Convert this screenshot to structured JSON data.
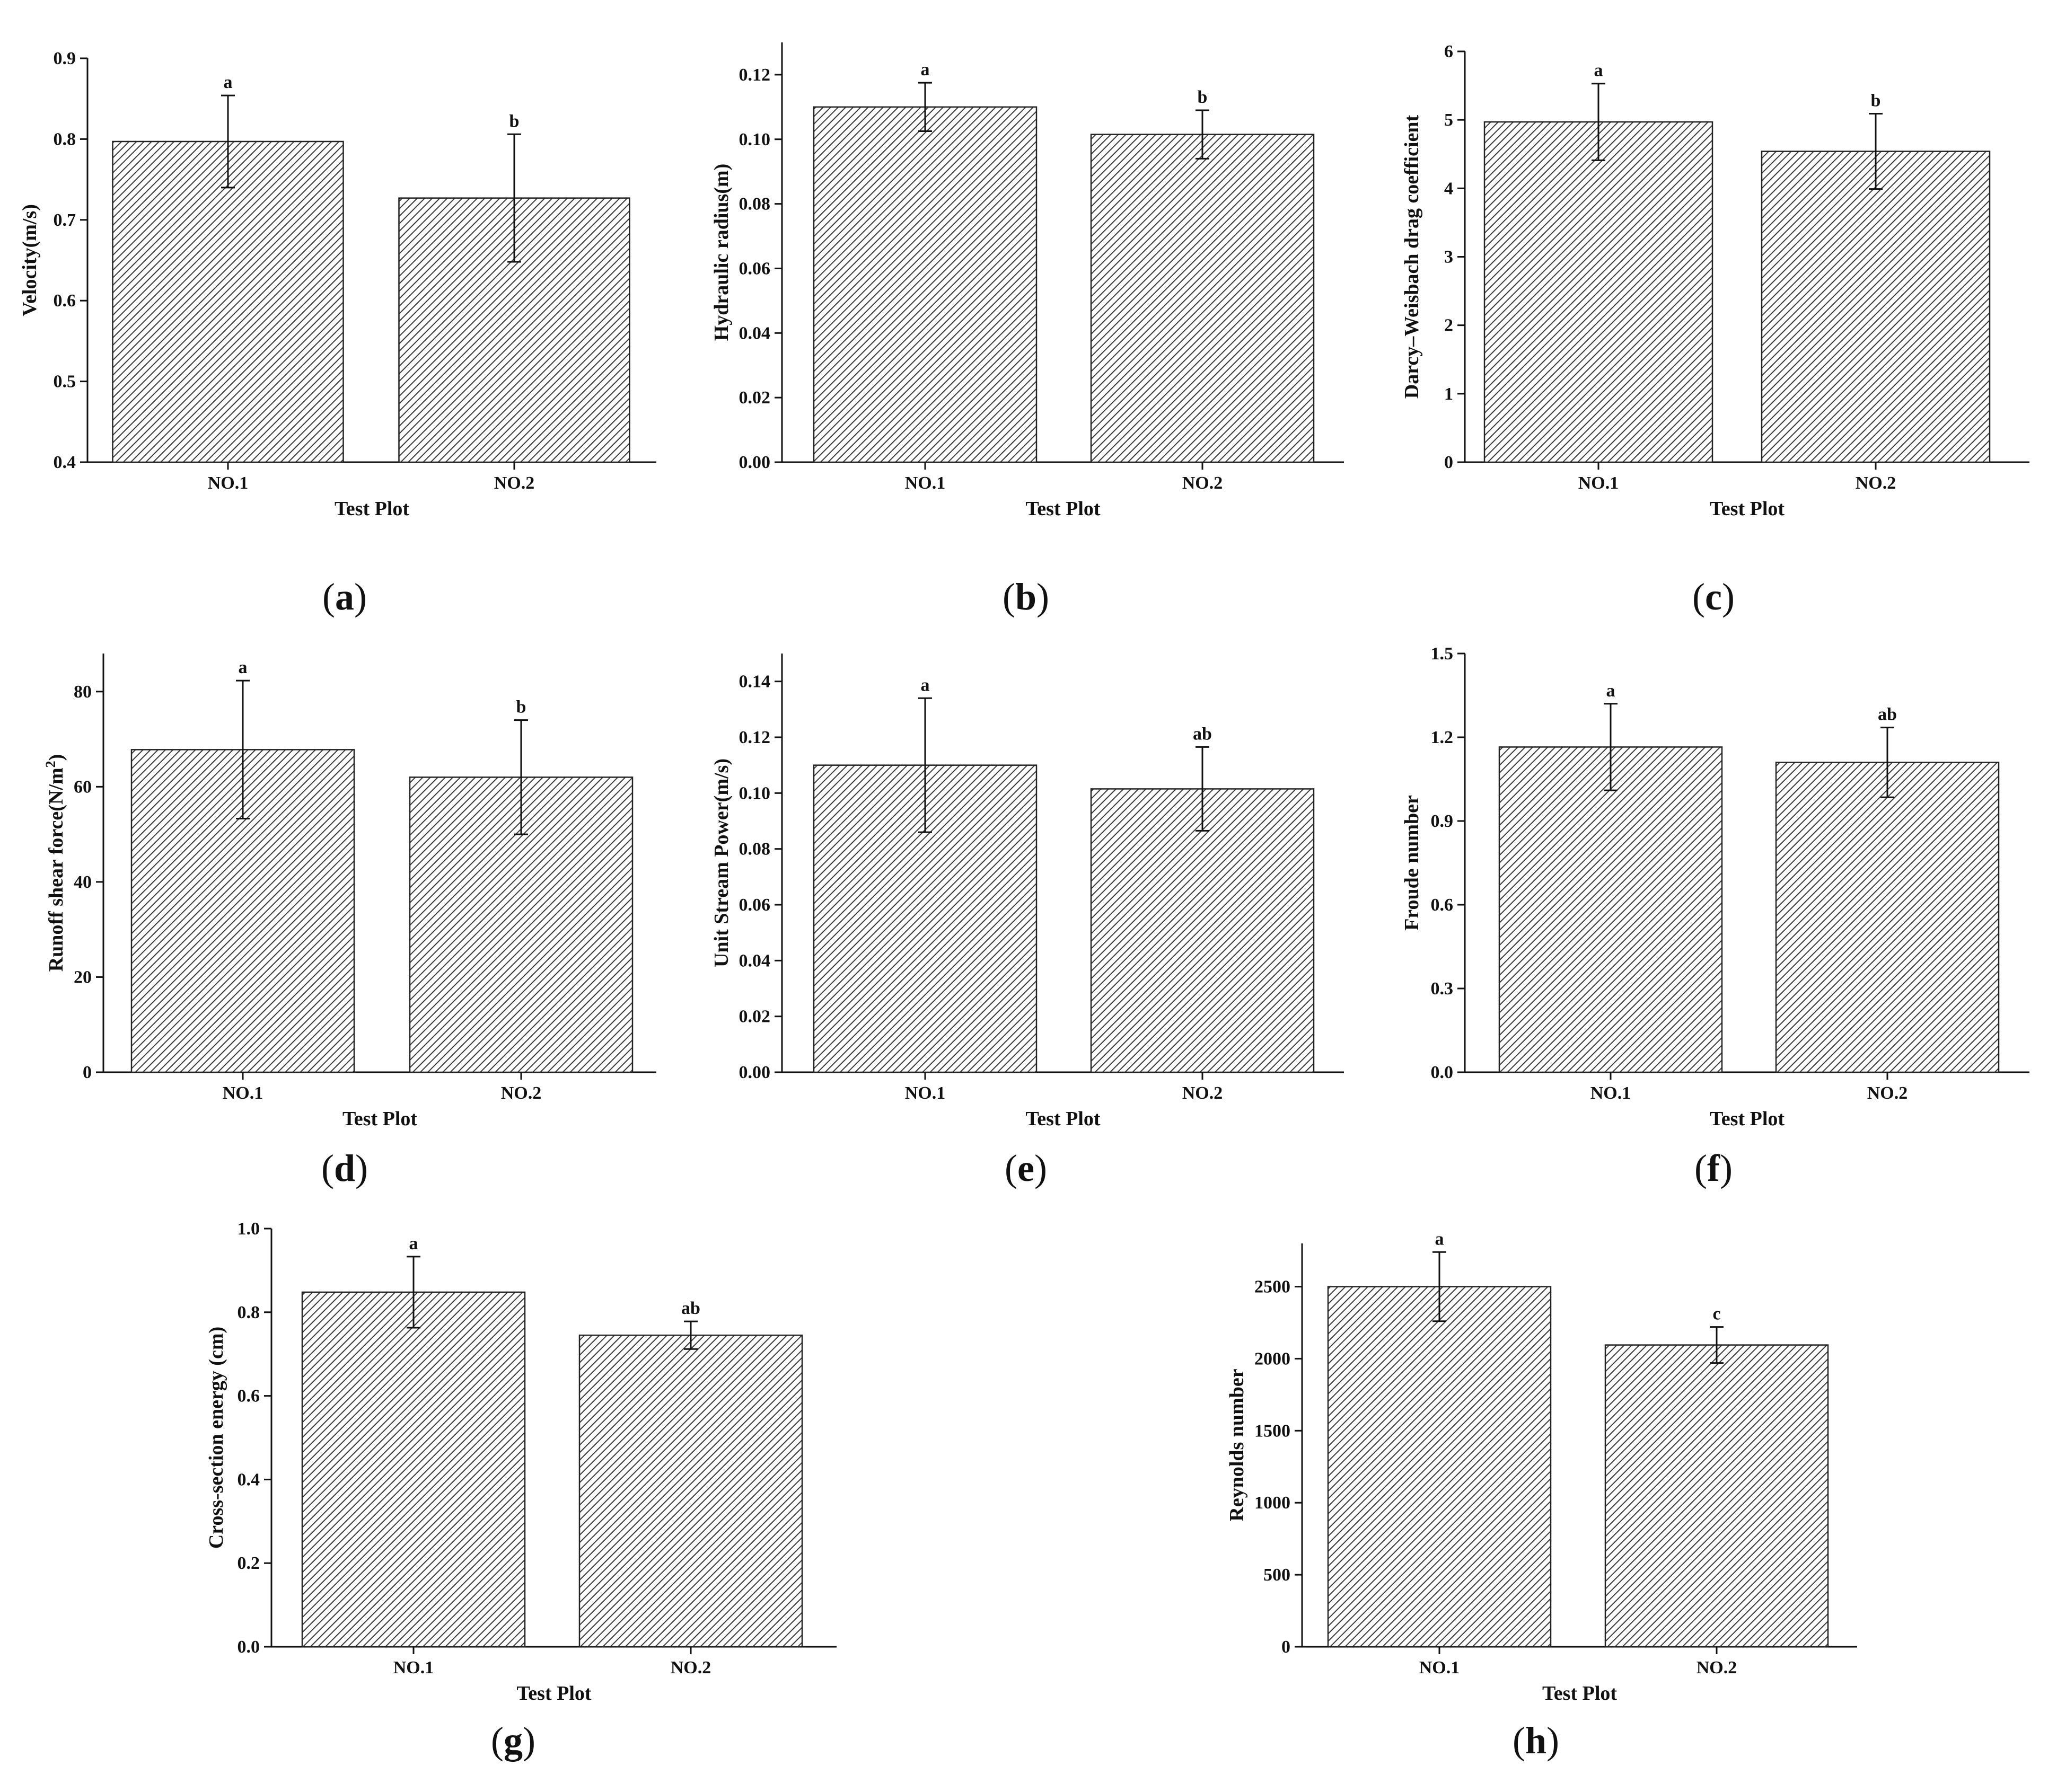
{
  "chart_data": [
    {
      "panel": "a",
      "type": "bar",
      "categories": [
        "NO.1",
        "NO.2"
      ],
      "values": [
        0.797,
        0.727
      ],
      "errors": [
        0.057,
        0.079
      ],
      "significance": [
        "a",
        "b"
      ],
      "xlabel": "Test Plot",
      "ylabel": "Velocity(m/s)",
      "ylim": [
        0.4,
        0.9
      ],
      "yticks": [
        "0.4",
        "0.5",
        "0.6",
        "0.7",
        "0.8",
        "0.9"
      ],
      "fill": "diagonal-hatch"
    },
    {
      "panel": "b",
      "type": "bar",
      "categories": [
        "NO.1",
        "NO.2"
      ],
      "values": [
        0.11,
        0.1015
      ],
      "errors": [
        0.0075,
        0.0075
      ],
      "significance": [
        "a",
        "b"
      ],
      "xlabel": "Test Plot",
      "ylabel": "Hydraulic radius(m)",
      "ylim": [
        0.0,
        0.13
      ],
      "yticks": [
        "0.00",
        "0.02",
        "0.04",
        "0.06",
        "0.08",
        "0.10",
        "0.12"
      ],
      "fill": "diagonal-hatch"
    },
    {
      "panel": "c",
      "type": "bar",
      "categories": [
        "NO.1",
        "NO.2"
      ],
      "values": [
        4.97,
        4.54
      ],
      "errors": [
        0.56,
        0.55
      ],
      "significance": [
        "a",
        "b"
      ],
      "xlabel": "Test Plot",
      "ylabel": "Darcy–Weisbach drag coefficient",
      "ylim": [
        0,
        6
      ],
      "yticks": [
        "0",
        "1",
        "2",
        "3",
        "4",
        "5",
        "6"
      ],
      "fill": "diagonal-hatch"
    },
    {
      "panel": "d",
      "type": "bar",
      "categories": [
        "NO.1",
        "NO.2"
      ],
      "values": [
        67.8,
        62.0
      ],
      "errors": [
        14.5,
        12.0
      ],
      "significance": [
        "a",
        "b"
      ],
      "xlabel": "Test Plot",
      "ylabel": "Runoff shear force(N/m",
      "ylabel_sup": "2",
      "ylabel_end": ")",
      "ylim": [
        0,
        88
      ],
      "yticks": [
        "0",
        "20",
        "40",
        "60",
        "80"
      ],
      "fill": "diagonal-hatch"
    },
    {
      "panel": "e",
      "type": "bar",
      "categories": [
        "NO.1",
        "NO.2"
      ],
      "values": [
        0.11,
        0.1015
      ],
      "errors": [
        0.024,
        0.015
      ],
      "significance": [
        "a",
        "ab"
      ],
      "xlabel": "Test Plot",
      "ylabel": "Unit Stream Power(m/s)",
      "ylim": [
        0.0,
        0.15
      ],
      "yticks": [
        "0.00",
        "0.02",
        "0.04",
        "0.06",
        "0.08",
        "0.10",
        "0.12",
        "0.14"
      ],
      "fill": "diagonal-hatch"
    },
    {
      "panel": "f",
      "type": "bar",
      "categories": [
        "NO.1",
        "NO.2"
      ],
      "values": [
        1.165,
        1.11
      ],
      "errors": [
        0.155,
        0.125
      ],
      "significance": [
        "a",
        "ab"
      ],
      "xlabel": "Test Plot",
      "ylabel": "Froude number",
      "ylim": [
        0.0,
        1.5
      ],
      "yticks": [
        "0.0",
        "0.3",
        "0.6",
        "0.9",
        "1.2",
        "1.5"
      ],
      "fill": "diagonal-hatch"
    },
    {
      "panel": "g",
      "type": "bar",
      "categories": [
        "NO.1",
        "NO.2"
      ],
      "values": [
        0.848,
        0.745
      ],
      "errors": [
        0.085,
        0.033
      ],
      "significance": [
        "a",
        "ab"
      ],
      "xlabel": "Test Plot",
      "ylabel": "Cross-section energy (cm)",
      "ylim": [
        0.0,
        1.0
      ],
      "yticks": [
        "0.0",
        "0.2",
        "0.4",
        "0.6",
        "0.8",
        "1.0"
      ],
      "fill": "diagonal-hatch"
    },
    {
      "panel": "h",
      "type": "bar",
      "categories": [
        "NO.1",
        "NO.2"
      ],
      "values": [
        2500,
        2095
      ],
      "errors": [
        240,
        125
      ],
      "significance": [
        "a",
        "c"
      ],
      "xlabel": "Test Plot",
      "ylabel": "Reynolds number",
      "ylim": [
        0,
        2800
      ],
      "yticks": [
        "0",
        "500",
        "1000",
        "1500",
        "2000",
        "2500"
      ],
      "fill": "diagonal-hatch"
    }
  ],
  "colors": {
    "ink": "#111111",
    "bar_outline": "#222222",
    "hatch": "#3a3a3a",
    "background": "#ffffff"
  }
}
